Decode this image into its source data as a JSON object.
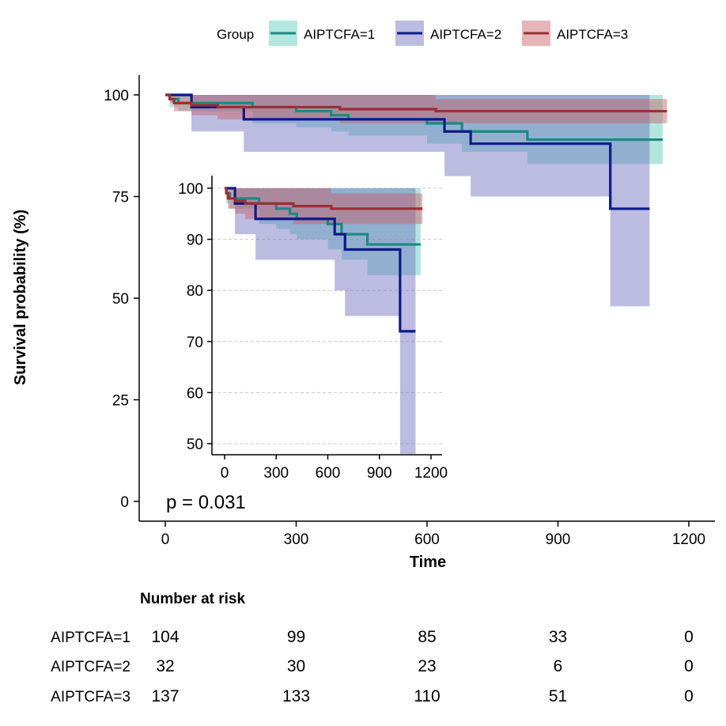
{
  "legend": {
    "title": "Group",
    "entries": [
      "AIPTCFA=1",
      "AIPTCFA=2",
      "AIPTCFA=3"
    ]
  },
  "colors": {
    "AIPTCFA=1": "#1a8a82",
    "AIPTCFA=2": "#0a1a8c",
    "AIPTCFA=3": "#9b2f35",
    "band1": "#54c9b7",
    "band2": "#6b6bbd",
    "band3": "#c75b61"
  },
  "chart_data": [
    {
      "type": "line",
      "subtype": "kaplan-meier",
      "ylabel": "Survival probability (%)",
      "xlabel": "Time",
      "xlim": [
        0,
        1200
      ],
      "ylim": [
        0,
        100
      ],
      "xticks": [
        "0",
        "300",
        "600",
        "900",
        "1200"
      ],
      "yticks": [
        "0",
        "25",
        "50",
        "75",
        "100"
      ],
      "annotation": "p = 0.031",
      "series": [
        {
          "name": "AIPTCFA=1",
          "steps": [
            [
              0,
              100
            ],
            [
              10,
              99
            ],
            [
              30,
              98
            ],
            [
              200,
              97
            ],
            [
              300,
              96
            ],
            [
              380,
              95
            ],
            [
              420,
              94
            ],
            [
              600,
              93
            ],
            [
              680,
              91
            ],
            [
              830,
              89
            ],
            [
              1140,
              89
            ]
          ],
          "lower": [
            [
              0,
              100
            ],
            [
              10,
              97
            ],
            [
              30,
              96
            ],
            [
              200,
              93
            ],
            [
              300,
              92
            ],
            [
              380,
              91
            ],
            [
              420,
              90
            ],
            [
              600,
              88
            ],
            [
              680,
              86
            ],
            [
              830,
              83
            ],
            [
              1140,
              83
            ]
          ],
          "upper": [
            [
              0,
              100
            ],
            [
              10,
              100
            ],
            [
              30,
              100
            ],
            [
              200,
              100
            ],
            [
              300,
              100
            ],
            [
              380,
              100
            ],
            [
              420,
              100
            ],
            [
              600,
              100
            ],
            [
              680,
              100
            ],
            [
              830,
              100
            ],
            [
              1140,
              100
            ]
          ]
        },
        {
          "name": "AIPTCFA=2",
          "steps": [
            [
              0,
              100
            ],
            [
              60,
              97
            ],
            [
              180,
              94
            ],
            [
              640,
              91
            ],
            [
              700,
              88
            ],
            [
              1020,
              72
            ],
            [
              1110,
              72
            ]
          ],
          "lower": [
            [
              0,
              100
            ],
            [
              60,
              91
            ],
            [
              180,
              86
            ],
            [
              640,
              80
            ],
            [
              700,
              75
            ],
            [
              1020,
              48
            ],
            [
              1110,
              48
            ]
          ],
          "upper": [
            [
              0,
              100
            ],
            [
              60,
              100
            ],
            [
              180,
              100
            ],
            [
              640,
              100
            ],
            [
              700,
              100
            ],
            [
              1020,
              100
            ],
            [
              1110,
              100
            ]
          ]
        },
        {
          "name": "AIPTCFA=3",
          "steps": [
            [
              0,
              100
            ],
            [
              10,
              99
            ],
            [
              20,
              98
            ],
            [
              60,
              97.5
            ],
            [
              120,
              97
            ],
            [
              200,
              97
            ],
            [
              400,
              96.5
            ],
            [
              620,
              96
            ],
            [
              1100,
              96
            ],
            [
              1150,
              96
            ]
          ],
          "lower": [
            [
              0,
              100
            ],
            [
              10,
              98
            ],
            [
              20,
              96
            ],
            [
              60,
              95
            ],
            [
              120,
              94
            ],
            [
              200,
              94
            ],
            [
              400,
              93
            ],
            [
              620,
              93
            ],
            [
              1100,
              93
            ],
            [
              1150,
              93
            ]
          ],
          "upper": [
            [
              0,
              100
            ],
            [
              10,
              100
            ],
            [
              20,
              100
            ],
            [
              60,
              100
            ],
            [
              120,
              100
            ],
            [
              200,
              100
            ],
            [
              400,
              100
            ],
            [
              620,
              99
            ],
            [
              1100,
              99
            ],
            [
              1150,
              99
            ]
          ]
        }
      ]
    },
    {
      "type": "line",
      "subtype": "kaplan-meier-inset",
      "xlim": [
        0,
        1200
      ],
      "ylim": [
        48,
        100
      ],
      "xticks": [
        "0",
        "300",
        "600",
        "900",
        "1200"
      ],
      "yticks": [
        "50",
        "60",
        "70",
        "80",
        "90",
        "100"
      ],
      "grid": true,
      "series_ref": "same as main panel"
    },
    {
      "type": "table",
      "title": "Number at risk",
      "times": [
        0,
        300,
        600,
        900,
        1200
      ],
      "rows": [
        {
          "group": "AIPTCFA=1",
          "values": [
            "104",
            "99",
            "85",
            "33",
            "0"
          ]
        },
        {
          "group": "AIPTCFA=2",
          "values": [
            "32",
            "30",
            "23",
            "6",
            "0"
          ]
        },
        {
          "group": "AIPTCFA=3",
          "values": [
            "137",
            "133",
            "110",
            "51",
            "0"
          ]
        }
      ]
    }
  ]
}
